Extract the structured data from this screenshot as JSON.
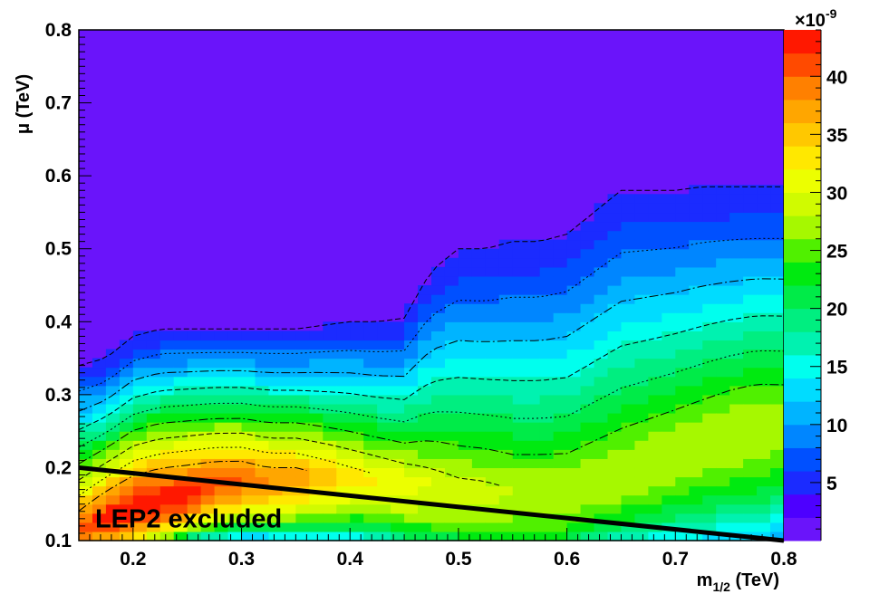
{
  "chart_data": {
    "type": "heatmap",
    "title": "",
    "xlabel": "m",
    "xlabel_sub": "1/2",
    "xlabel_unit": " (TeV)",
    "ylabel": "μ (TeV)",
    "xlim": [
      0.15,
      0.8
    ],
    "ylim": [
      0.1,
      0.8
    ],
    "x_ticks": [
      0.2,
      0.3,
      0.4,
      0.5,
      0.6,
      0.7,
      0.8
    ],
    "x_tick_labels": [
      "0.2",
      "0.3",
      "0.4",
      "0.5",
      "0.6",
      "0.7",
      "0.8"
    ],
    "y_ticks": [
      0.1,
      0.2,
      0.3,
      0.4,
      0.5,
      0.6,
      0.7,
      0.8
    ],
    "y_tick_labels": [
      "0.1",
      "0.2",
      "0.3",
      "0.4",
      "0.5",
      "0.6",
      "0.7",
      "0.8"
    ],
    "colorbar": {
      "range": [
        0,
        44
      ],
      "multiplier_base": "×10",
      "multiplier_exp": "-9",
      "ticks": [
        5,
        10,
        15,
        20,
        25,
        30,
        35,
        40
      ],
      "tick_labels": [
        "5",
        "10",
        "15",
        "20",
        "25",
        "30",
        "35",
        "40"
      ],
      "colors": [
        "#6a14fa",
        "#4d00ff",
        "#1b2bff",
        "#0050ff",
        "#0086ff",
        "#00b4ff",
        "#00dcff",
        "#00ffee",
        "#00f2b0",
        "#00ee80",
        "#00eb48",
        "#00ea10",
        "#50f000",
        "#a6f800",
        "#d0fb00",
        "#ecff00",
        "#ffe800",
        "#ffc800",
        "#ffa600",
        "#ff8000",
        "#ff4a00",
        "#ff1800"
      ]
    },
    "x_grid": [
      0.15,
      0.175,
      0.2,
      0.225,
      0.25,
      0.275,
      0.3,
      0.325,
      0.35,
      0.375,
      0.4,
      0.425,
      0.45,
      0.475,
      0.5,
      0.525,
      0.55,
      0.575,
      0.6,
      0.625,
      0.65,
      0.675,
      0.7,
      0.725,
      0.75,
      0.775,
      0.8
    ],
    "upper_boundary_mu": [
      0.34,
      0.35,
      0.38,
      0.39,
      0.39,
      0.39,
      0.39,
      0.39,
      0.39,
      0.395,
      0.4,
      0.4,
      0.405,
      0.47,
      0.5,
      0.5,
      0.51,
      0.51,
      0.52,
      0.55,
      0.58,
      0.58,
      0.58,
      0.585,
      0.585,
      0.585,
      0.585
    ],
    "peak_mu": [
      0.12,
      0.135,
      0.15,
      0.16,
      0.17,
      0.185,
      0.19,
      0.19,
      0.195,
      0.195,
      0.195,
      0.19,
      0.185,
      0.18,
      0.175,
      0.17,
      0.17,
      0.17,
      0.17,
      0.185,
      0.2,
      0.215,
      0.23,
      0.245,
      0.26,
      0.27,
      0.28
    ],
    "peak_value": [
      40,
      43,
      44,
      44,
      43,
      41,
      40,
      38,
      37,
      35,
      33,
      32,
      31,
      30,
      29,
      29,
      28,
      28,
      28,
      28,
      28,
      28,
      28,
      28,
      28,
      28,
      27
    ],
    "peak_width_below": [
      0.06,
      0.06,
      0.07,
      0.07,
      0.07,
      0.08,
      0.08,
      0.08,
      0.09,
      0.09,
      0.09,
      0.09,
      0.1,
      0.1,
      0.1,
      0.1,
      0.1,
      0.1,
      0.1,
      0.1,
      0.11,
      0.12,
      0.13,
      0.14,
      0.15,
      0.16,
      0.16
    ],
    "lep2_line": {
      "x": [
        0.15,
        0.8
      ],
      "y": [
        0.2,
        0.1
      ]
    },
    "annotations": [
      {
        "text": "LEP2 excluded",
        "x": 0.165,
        "y": 0.118
      }
    ]
  }
}
